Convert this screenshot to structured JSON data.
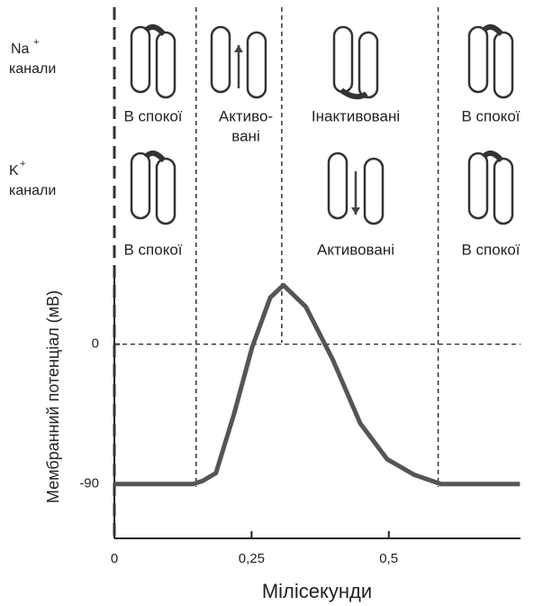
{
  "chart_data": {
    "type": "line",
    "y_label": "Мембранний потенціал (мВ)",
    "x_label": "Мілісекунди",
    "x": [
      0,
      0.144,
      0.161,
      0.185,
      0.218,
      0.251,
      0.284,
      0.308,
      0.349,
      0.398,
      0.448,
      0.497,
      0.546,
      0.595,
      0.739
    ],
    "values": [
      -90,
      -90,
      -88,
      -83,
      -45,
      -2,
      30,
      38,
      24,
      -10,
      -51,
      -74,
      -84,
      -90,
      -90
    ],
    "color": "#555555",
    "xlim": [
      0,
      0.74
    ],
    "ylim": [
      -125,
      48
    ],
    "xticks": [
      0,
      {
        "value": 0.25,
        "label": "0,25"
      },
      {
        "value": 0.5,
        "label": "0,5"
      }
    ],
    "yticks": [
      0,
      -90
    ],
    "hline": 0,
    "phase_lines": [
      0,
      0.149,
      0.305,
      0.59
    ],
    "channels": [
      {
        "name": "Na",
        "charge": "+",
        "label": "канали",
        "states": [
          [
            "В спокої"
          ],
          [
            "Активо-",
            "вані"
          ],
          [
            "Інактивовані"
          ],
          [
            "В спокої"
          ]
        ]
      },
      {
        "name": "K",
        "charge": "+",
        "label": "канали",
        "states": [
          [
            "В спокої"
          ],
          null,
          [
            "Активовані"
          ],
          [
            "В спокої"
          ]
        ]
      }
    ]
  }
}
